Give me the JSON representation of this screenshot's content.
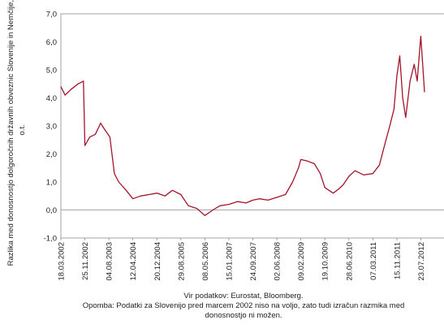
{
  "chart_data": {
    "type": "line",
    "title": "",
    "ylabel_line1": "Razlika med donosnostjo dolgoročnih državnih obveznic Slovenije in Nemčije, v",
    "ylabel_line2": "o.t.",
    "xlabel": "",
    "ylim": [
      -1.0,
      7.0
    ],
    "yticks": [
      "-1,0",
      "0,0",
      "1,0",
      "2,0",
      "3,0",
      "4,0",
      "5,0",
      "6,0",
      "7,0"
    ],
    "xticks": [
      "18.03.2002",
      "25.11.2002",
      "04.08.2003",
      "12.04.2004",
      "20.12.2004",
      "29.08.2005",
      "08.05.2006",
      "15.01.2007",
      "24.09.2007",
      "02.06.2008",
      "09.02.2009",
      "19.10.2009",
      "28.06.2010",
      "07.03.2011",
      "15.11.2011",
      "23.07.2012"
    ],
    "grid": false,
    "line_color": "#a3152a",
    "series": [
      {
        "x": [
          "2002-03-18",
          "2002-05-01",
          "2002-07-01",
          "2002-09-15",
          "2002-11-10",
          "2002-11-25",
          "2003-01-15",
          "2003-03-15",
          "2003-05-10",
          "2003-06-15",
          "2003-08-15",
          "2003-10-01",
          "2003-11-15",
          "2004-02-01",
          "2004-04-12",
          "2004-07-01",
          "2004-10-01",
          "2004-12-20",
          "2005-03-15",
          "2005-06-01",
          "2005-08-29",
          "2005-11-15",
          "2006-02-15",
          "2006-05-08",
          "2006-08-01",
          "2006-10-15",
          "2007-01-15",
          "2007-04-15",
          "2007-07-15",
          "2007-09-24",
          "2007-12-01",
          "2008-03-01",
          "2008-06-02",
          "2008-09-01",
          "2008-11-15",
          "2009-01-15",
          "2009-02-09",
          "2009-04-15",
          "2009-07-01",
          "2009-09-01",
          "2009-10-19",
          "2010-01-15",
          "2010-03-15",
          "2010-05-01",
          "2010-06-28",
          "2010-09-01",
          "2010-12-01",
          "2011-03-07",
          "2011-05-15",
          "2011-07-15",
          "2011-09-01",
          "2011-10-15",
          "2011-11-15",
          "2011-12-15",
          "2012-01-15",
          "2012-02-15",
          "2012-04-01",
          "2012-05-15",
          "2012-06-15",
          "2012-07-23",
          "2012-08-10",
          "2012-08-31"
        ],
        "y": [
          4.4,
          4.1,
          4.3,
          4.5,
          4.6,
          2.3,
          2.6,
          2.7,
          3.1,
          2.9,
          2.6,
          1.3,
          1.0,
          0.7,
          0.4,
          0.5,
          0.55,
          0.6,
          0.5,
          0.7,
          0.55,
          0.15,
          0.05,
          -0.2,
          0.0,
          0.15,
          0.2,
          0.3,
          0.25,
          0.35,
          0.4,
          0.35,
          0.45,
          0.55,
          1.0,
          1.5,
          1.8,
          1.75,
          1.65,
          1.3,
          0.8,
          0.6,
          0.75,
          0.9,
          1.2,
          1.4,
          1.25,
          1.3,
          1.6,
          2.4,
          3.0,
          3.6,
          4.8,
          5.5,
          4.0,
          3.3,
          4.6,
          5.2,
          4.6,
          6.2,
          5.3,
          4.2
        ]
      }
    ]
  },
  "footer": {
    "source": "Vir podatkov:  Eurostat, Bloomberg.",
    "note_line1": "Opomba: Podatki za Slovenijo pred marcem 2002 niso na voljo, zato tudi izračun razmika med",
    "note_line2": "donosnostjo ni možen."
  }
}
